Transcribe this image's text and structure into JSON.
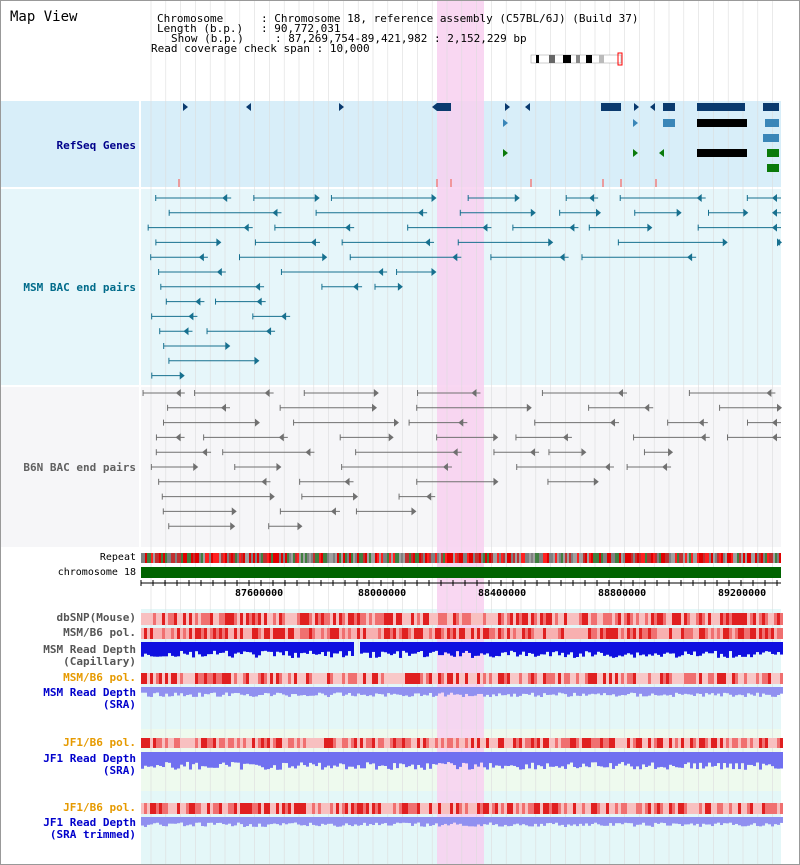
{
  "map_title": "Map View",
  "info": {
    "chromosome_label": "Chromosome",
    "chromosome_value": "Chromosome 18, reference assembly (C57BL/6J) (Build 37)",
    "length_label": "Length (b.p.)",
    "length_value": "90,772,031",
    "show_label": "Show (b.p.)",
    "show_value": "87,269,754-89,421,982 : 2,152,229 bp",
    "coverage_label": "Read coverage check span",
    "coverage_value": "10,000"
  },
  "tracks": {
    "refseq": "RefSeq Genes",
    "msm_bac": "MSM BAC end pairs",
    "b6n_bac": "B6N BAC end pairs",
    "repeat": "Repeat",
    "chromosome": "chromosome 18",
    "dbsnp": "dbSNP(Mouse)",
    "msm_b6_pol_1": "MSM/B6 pol.",
    "msm_read_depth_cap_1": "MSM Read Depth",
    "msm_read_depth_cap_2": "(Capillary)",
    "msm_b6_pol_2": "MSM/B6 pol.",
    "msm_read_depth_sra_1": "MSM Read Depth",
    "msm_read_depth_sra_2": "(SRA)",
    "jf1_b6_pol_1": "JF1/B6 pol.",
    "jf1_read_depth_sra_1": "JF1 Read Depth",
    "jf1_read_depth_sra_2": "(SRA)",
    "jf1_b6_pol_2": "JF1/B6 pol.",
    "jf1_read_depth_trim_1": "JF1 Read Depth",
    "jf1_read_depth_trim_2": "(SRA trimmed)"
  },
  "axis_ticks": [
    "87600000",
    "88000000",
    "88400000",
    "88800000",
    "89200000"
  ],
  "colors": {
    "refseq_label": "#00008b",
    "msm_bac_label": "#006b8a",
    "b6n_bac_label": "#606060",
    "pol_label": "#e69a00",
    "depth_label": "#0000cc",
    "highlight": "#f8d0f0",
    "chromosome_bar": "#006400"
  }
}
